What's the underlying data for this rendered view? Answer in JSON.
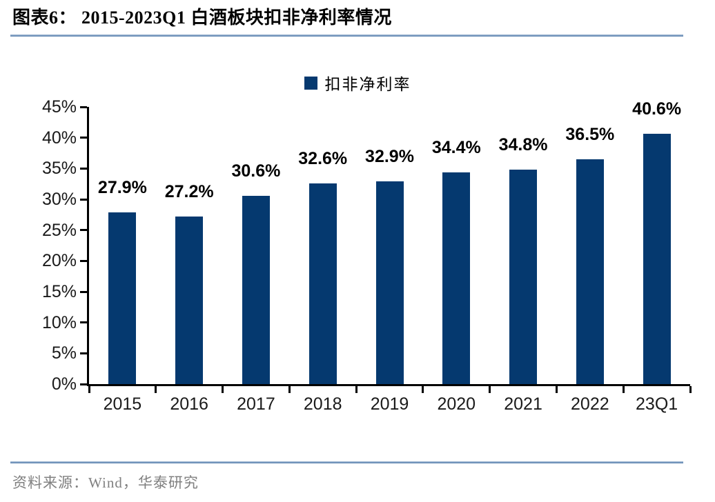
{
  "figure": {
    "title": "图表6： 2015-2023Q1 白酒板块扣非净利率情况",
    "source": "资料来源：Wind，华泰研究"
  },
  "chart_data": {
    "type": "bar",
    "title": "图表6： 2015-2023Q1 白酒板块扣非净利率情况",
    "legend": [
      {
        "label": "扣非净利率",
        "color": "#05396f"
      }
    ],
    "legend_position": "top-center",
    "categories": [
      "2015",
      "2016",
      "2017",
      "2018",
      "2019",
      "2020",
      "2021",
      "2022",
      "23Q1"
    ],
    "values": [
      27.9,
      27.2,
      30.6,
      32.6,
      32.9,
      34.4,
      34.8,
      36.5,
      40.6
    ],
    "data_labels": [
      "27.9%",
      "27.2%",
      "30.6%",
      "32.6%",
      "32.9%",
      "34.4%",
      "34.8%",
      "36.5%",
      "40.6%"
    ],
    "xlabel": "",
    "ylabel": "",
    "ylim": [
      0,
      45
    ],
    "y_tick_step": 5,
    "y_tick_labels": [
      "0%",
      "5%",
      "10%",
      "15%",
      "20%",
      "25%",
      "30%",
      "35%",
      "40%",
      "45%"
    ],
    "grid": false,
    "bar_color": "#05396f"
  },
  "colors": {
    "accent_rule": "#4f78a8",
    "bar": "#05396f",
    "axis": "#000000",
    "source_text": "#808080"
  }
}
